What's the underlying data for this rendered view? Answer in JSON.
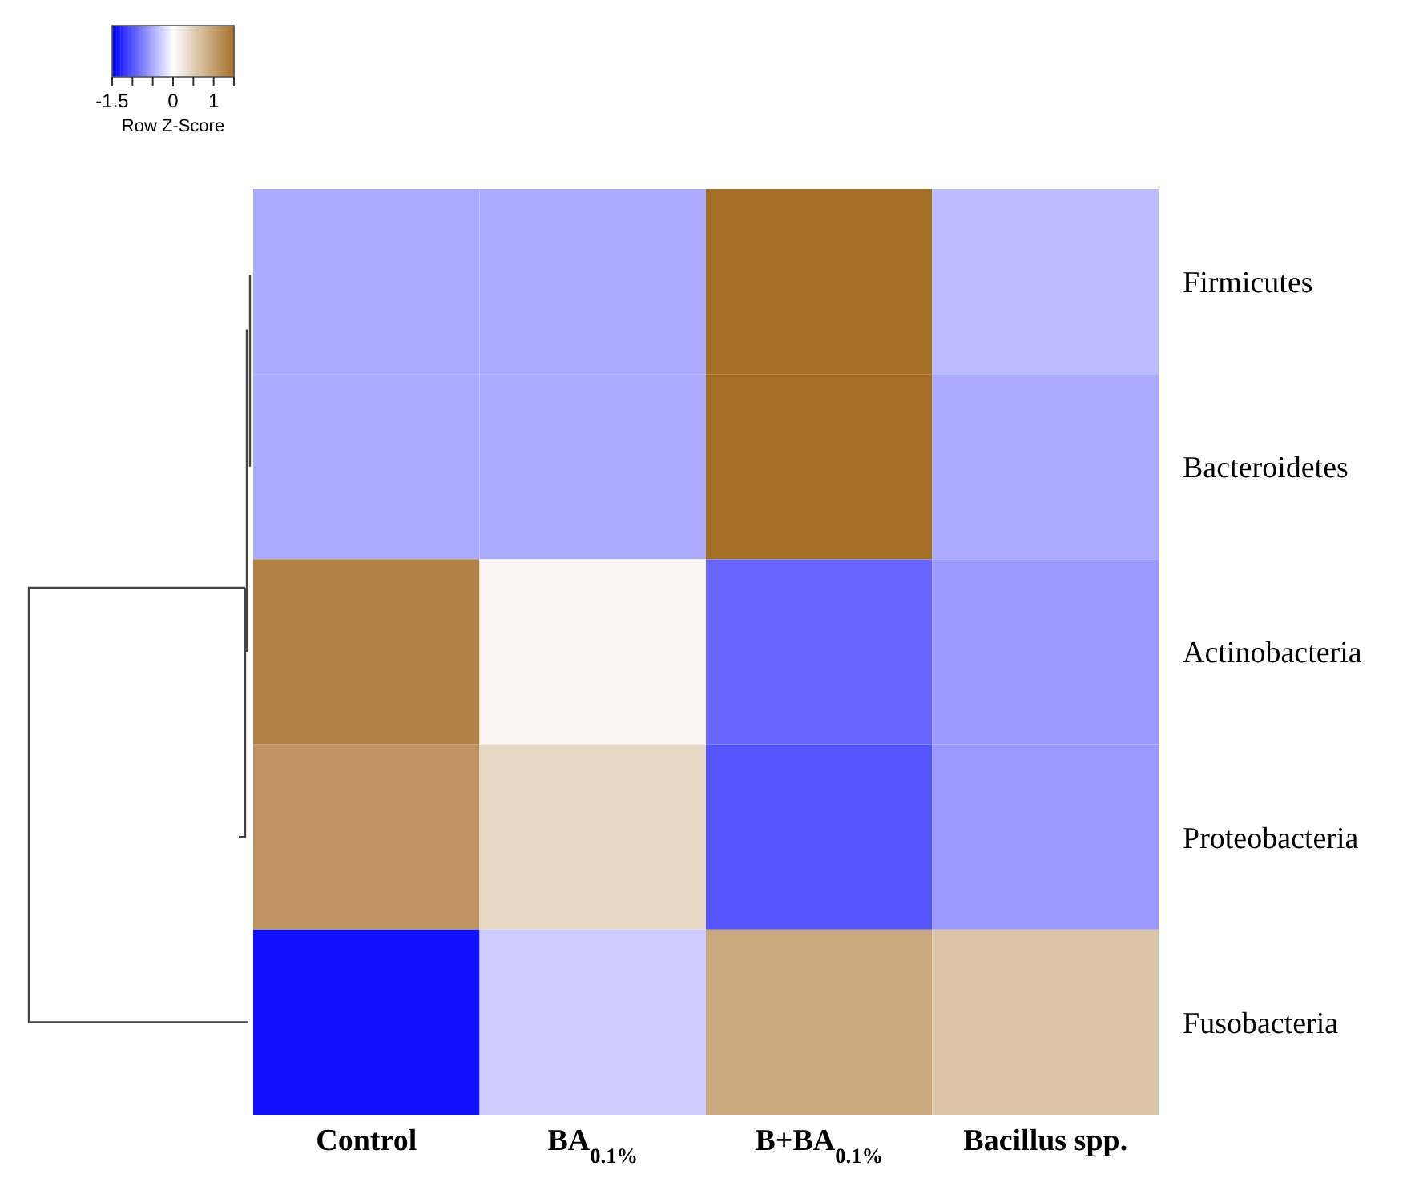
{
  "chart_data": {
    "type": "heatmap",
    "clabel": "Row Z-Score",
    "categories": [
      "Control",
      "BA$_{0.1%}$",
      "B+BA$_{0.1%}$",
      "Bacillus spp."
    ],
    "y_categories": [
      "Firmicutes",
      "Bacteroidetes",
      "Actinobacteria",
      "Proteobacteria",
      "Fusobacteria"
    ],
    "cells": [
      [
        -0.5,
        -0.5,
        1.5,
        -0.4
      ],
      [
        -0.5,
        -0.5,
        1.5,
        -0.5
      ],
      [
        1.3,
        0.1,
        -0.9,
        -0.6
      ],
      [
        1.1,
        0.4,
        -1.0,
        -0.6
      ],
      [
        -1.4,
        -0.3,
        0.9,
        0.6
      ]
    ],
    "clim": [
      -1.5,
      1.5
    ],
    "cticks": [
      {
        "value": -1.5,
        "label": "-1.5"
      },
      {
        "value": -1,
        "label": null
      },
      {
        "value": -0.5,
        "label": null
      },
      {
        "value": 0,
        "label": "0"
      },
      {
        "value": 0.5,
        "label": null
      },
      {
        "value": 1,
        "label": "1"
      },
      {
        "value": 1.5,
        "label": null
      }
    ]
  }
}
